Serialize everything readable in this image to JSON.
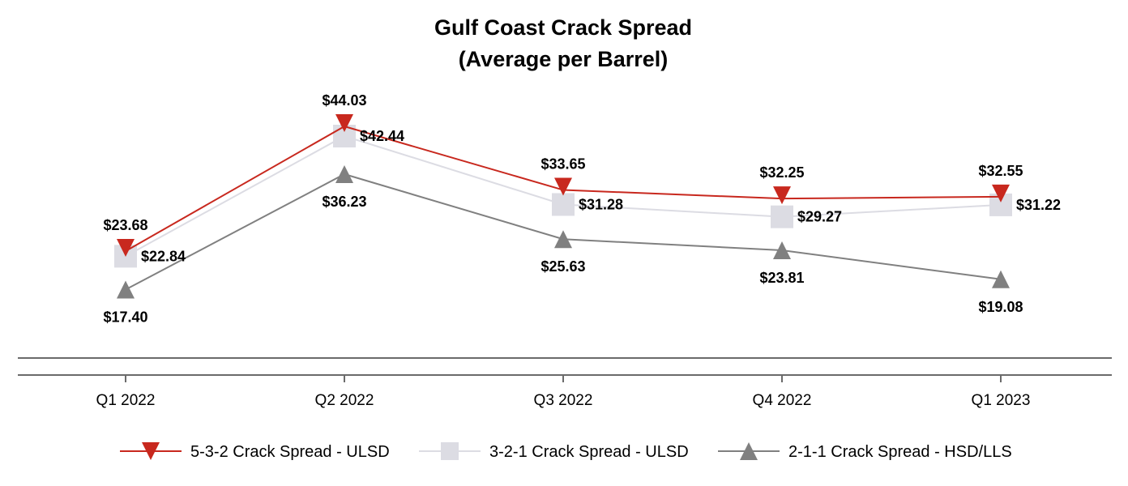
{
  "chart_data": {
    "type": "line",
    "title": "Gulf Coast Crack Spread",
    "subtitle": "(Average per Barrel)",
    "categories": [
      "Q1 2022",
      "Q2 2022",
      "Q3 2022",
      "Q4 2022",
      "Q1 2023"
    ],
    "ylim": [
      0,
      50
    ],
    "grid": false,
    "legend_position": "bottom",
    "series": [
      {
        "name": "5-3-2 Crack Spread - ULSD",
        "values": [
          23.68,
          44.03,
          33.65,
          32.25,
          32.55
        ],
        "labels": [
          "$23.68",
          "$44.03",
          "$33.65",
          "$32.25",
          "$32.55"
        ],
        "color": "#c8281e",
        "marker": "triangle-down"
      },
      {
        "name": "3-2-1 Crack Spread - ULSD",
        "values": [
          22.84,
          42.44,
          31.28,
          29.27,
          31.22
        ],
        "labels": [
          "$22.84",
          "$42.44",
          "$31.28",
          "$29.27",
          "$31.22"
        ],
        "color": "#dcdce3",
        "marker": "square"
      },
      {
        "name": "2-1-1 Crack Spread - HSD/LLS",
        "values": [
          17.4,
          36.23,
          25.63,
          23.81,
          19.08
        ],
        "labels": [
          "$17.40",
          "$36.23",
          "$25.63",
          "$23.81",
          "$19.08"
        ],
        "color": "#808080",
        "marker": "triangle-up"
      }
    ]
  }
}
